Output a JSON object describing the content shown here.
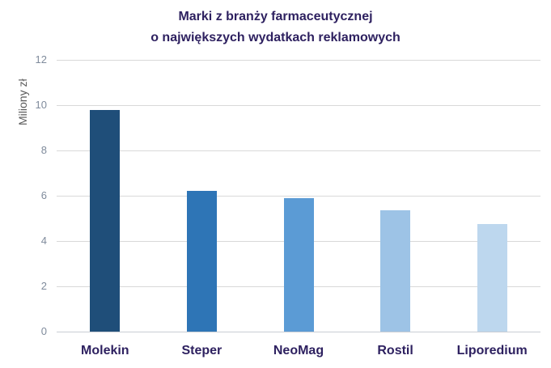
{
  "chart_data": {
    "type": "bar",
    "title": "Marki z branży farmaceutycznej o największych wydatkach reklamowych",
    "title_line1": "Marki z branży farmaceutycznej",
    "title_line2": "o największych wydatkach reklamowych",
    "ylabel": "Miliony zł",
    "xlabel": "",
    "categories": [
      "Molekin",
      "Steper",
      "NeoMag",
      "Rostil",
      "Liporedium"
    ],
    "values": [
      9.8,
      6.2,
      5.9,
      5.35,
      4.75
    ],
    "ylim": [
      0,
      12
    ],
    "ytick_step": 2,
    "yticks": [
      0,
      2,
      4,
      6,
      8,
      10,
      12
    ],
    "grid": true,
    "legend": false,
    "colors": {
      "title": "#2E2160",
      "category_labels": "#2E2160",
      "ticks": "#7F8B9C",
      "ylabel": "#595959",
      "gridline": "#D9D9D9",
      "axis_line": "#C9CDD3",
      "bars": [
        "#1F4E79",
        "#2E75B6",
        "#5B9BD5",
        "#9DC3E6",
        "#BDD7EE"
      ]
    }
  }
}
